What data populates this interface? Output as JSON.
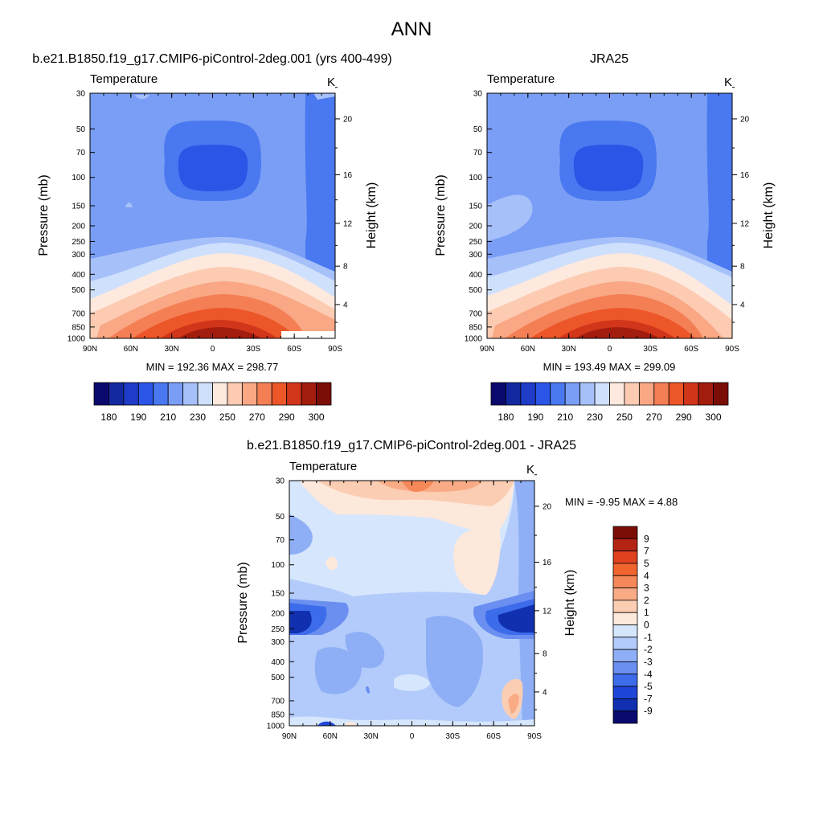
{
  "figure_title": "ANN",
  "chart_data": [
    {
      "type": "heatmap",
      "title": "b.e21.B1850.f19_g17.CMIP6-piControl-2deg.001 (yrs 400-499)",
      "left_label": "Temperature",
      "right_label": "K",
      "ylabel": "Pressure (mb)",
      "ylabel_right": "Height (km)",
      "x_ticks": [
        "90N",
        "60N",
        "30N",
        "0",
        "30S",
        "60S",
        "90S"
      ],
      "y_ticks": [
        "30",
        "50",
        "70",
        "100",
        "150",
        "200",
        "250",
        "300",
        "400",
        "500",
        "700",
        "850",
        "1000"
      ],
      "height_ticks": [
        "4",
        "8",
        "12",
        "16",
        "20"
      ],
      "stats": "MIN = 192.36  MAX = 298.77",
      "colorbar_labels": [
        "180",
        "190",
        "210",
        "230",
        "250",
        "270",
        "290",
        "300"
      ]
    },
    {
      "type": "heatmap",
      "title": "JRA25",
      "left_label": "Temperature",
      "right_label": "K",
      "ylabel": "Pressure (mb)",
      "ylabel_right": "Height (km)",
      "x_ticks": [
        "90N",
        "60N",
        "30N",
        "0",
        "30S",
        "60S",
        "90S"
      ],
      "y_ticks": [
        "30",
        "50",
        "70",
        "100",
        "150",
        "200",
        "250",
        "300",
        "400",
        "500",
        "700",
        "850",
        "1000"
      ],
      "height_ticks": [
        "4",
        "8",
        "12",
        "16",
        "20"
      ],
      "stats": "MIN = 193.49  MAX = 299.09",
      "colorbar_labels": [
        "180",
        "190",
        "210",
        "230",
        "250",
        "270",
        "290",
        "300"
      ]
    },
    {
      "type": "heatmap",
      "title": "b.e21.B1850.f19_g17.CMIP6-piControl-2deg.001 - JRA25",
      "left_label": "Temperature",
      "right_label": "K",
      "ylabel": "Pressure (mb)",
      "ylabel_right": "Height (km)",
      "x_ticks": [
        "90N",
        "60N",
        "30N",
        "0",
        "30S",
        "60S",
        "90S"
      ],
      "y_ticks": [
        "30",
        "50",
        "70",
        "100",
        "150",
        "200",
        "250",
        "300",
        "400",
        "500",
        "700",
        "850",
        "1000"
      ],
      "height_ticks": [
        "4",
        "8",
        "12",
        "16",
        "20"
      ],
      "stats": "MIN =  -9.95  MAX =   4.88",
      "colorbar_labels": [
        "9",
        "7",
        "5",
        "4",
        "3",
        "2",
        "1",
        "0",
        "-1",
        "-2",
        "-3",
        "-4",
        "-5",
        "-7",
        "-9"
      ]
    }
  ],
  "colors": {
    "abs_palette": [
      "#0a0a6e",
      "#1428a0",
      "#1e3cc8",
      "#2b55e6",
      "#4a78f0",
      "#7a9ef5",
      "#a6c0fa",
      "#cfe0fc",
      "#fde9dd",
      "#fccbb2",
      "#f9a784",
      "#f47f55",
      "#ec5629",
      "#d2361a",
      "#a31d0f",
      "#7b0d07"
    ],
    "diff_palette": [
      "#7b0d07",
      "#b42414",
      "#e0421f",
      "#f0642f",
      "#f58858",
      "#f9ab86",
      "#fbcdb3",
      "#fde8dc",
      "#d6e6fc",
      "#b3cbfa",
      "#8eaef5",
      "#6a8ff0",
      "#3d6ceb",
      "#1e46d8",
      "#1030b0",
      "#0a0a6e"
    ]
  }
}
